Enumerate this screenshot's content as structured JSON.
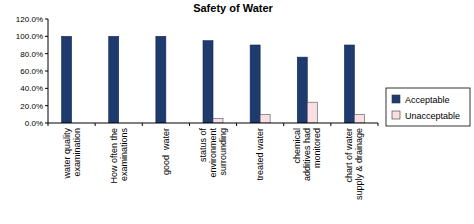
{
  "chart_data": {
    "type": "bar",
    "title": "Safety of Water",
    "categories": [
      "water quality examination",
      "How often the examinations",
      "good  water",
      "status of environment surrounding",
      "treated water",
      "chemical additives had monitored",
      "chart of water supply & drainage"
    ],
    "series": [
      {
        "name": "Acceptable",
        "color": "#1f3a6e",
        "values": [
          100,
          100,
          100,
          95,
          90,
          76,
          90
        ]
      },
      {
        "name": "Unacceptable",
        "color": "#f8dfe4",
        "values": [
          0,
          0,
          0,
          5,
          10,
          24,
          10
        ]
      }
    ],
    "ylim": [
      0,
      120
    ],
    "yticks": [
      {
        "value": 0,
        "label": "0.0%"
      },
      {
        "value": 20,
        "label": "20.0%"
      },
      {
        "value": 40,
        "label": "40.0%"
      },
      {
        "value": 60,
        "label": "60.0%"
      },
      {
        "value": 80,
        "label": "80.0%"
      },
      {
        "value": 100,
        "label": "100.0%"
      },
      {
        "value": 120,
        "label": "120.0%"
      }
    ],
    "grid": false,
    "legend": "right"
  }
}
